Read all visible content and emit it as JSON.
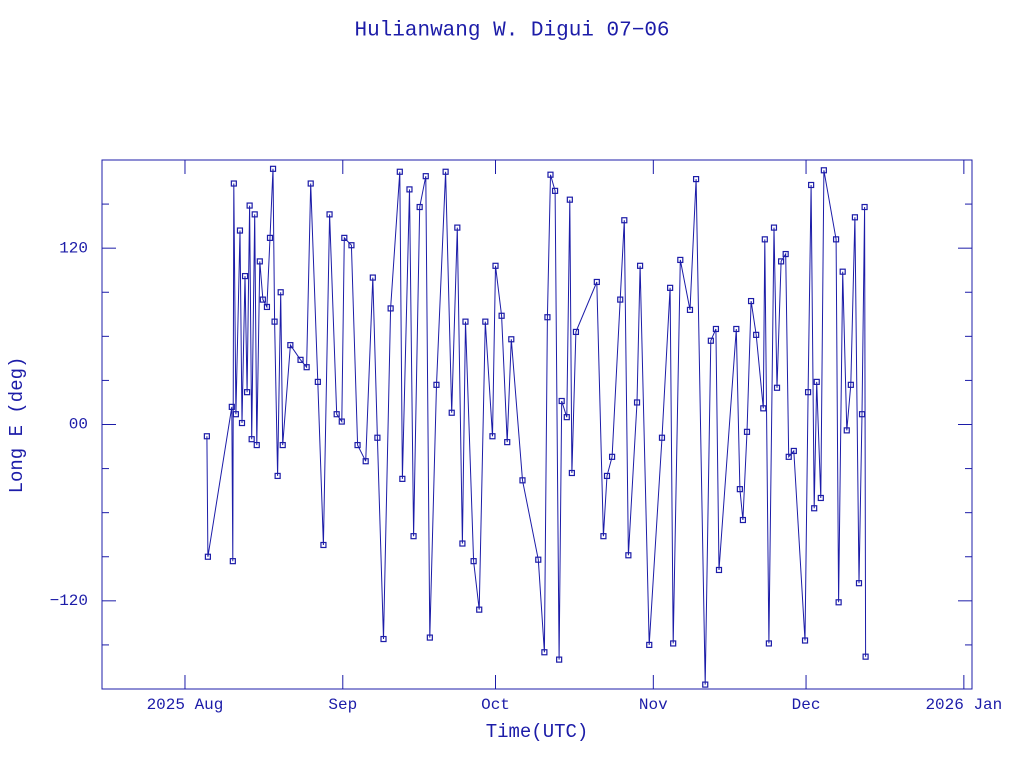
{
  "chart_data": {
    "type": "line",
    "title": "Hulianwang W. Digui 07−06",
    "x_label": "Time(UTC)",
    "y_label": "Long E (deg)",
    "xlim": [
      196.7,
      367.6
    ],
    "xticks": [
      {
        "value": 213,
        "label": "2025 Aug"
      },
      {
        "value": 244,
        "label": "Sep"
      },
      {
        "value": 274,
        "label": "Oct"
      },
      {
        "value": 305,
        "label": "Nov"
      },
      {
        "value": 335,
        "label": "Dec"
      },
      {
        "value": 366,
        "label": "2026 Jan"
      }
    ],
    "ylim": [
      -180,
      180
    ],
    "yticks": [
      {
        "value": -120,
        "label": "−120"
      },
      {
        "value": 0,
        "label": "00"
      },
      120
    ],
    "yticks_minor": [
      -150,
      -90,
      -60,
      -30,
      30,
      60,
      90,
      150
    ],
    "color": "#1c1ca8",
    "x": [
      217.3,
      217.5,
      222.2,
      222.4,
      222.6,
      223,
      223.8,
      224.2,
      224.8,
      225.2,
      225.7,
      226.1,
      226.7,
      227.1,
      227.7,
      228.3,
      229.1,
      229.7,
      230.3,
      230.6,
      231.2,
      231.8,
      232.2,
      233.7,
      235.7,
      236.9,
      237.7,
      239.1,
      240.2,
      241.4,
      242.8,
      243.8,
      244.3,
      245.7,
      246.9,
      248.5,
      249.9,
      250.8,
      252,
      253.4,
      255.2,
      255.7,
      257.1,
      257.9,
      259.1,
      260.3,
      261.1,
      262.4,
      264.2,
      265.4,
      266.5,
      267.5,
      268.1,
      269.7,
      270.8,
      272,
      273.4,
      274,
      275.2,
      276.3,
      277.1,
      279.3,
      282.4,
      283.6,
      284.2,
      284.8,
      285.7,
      286.5,
      287,
      288,
      288.6,
      289,
      289.8,
      293.9,
      295.2,
      295.9,
      296.9,
      298.5,
      299.3,
      300.1,
      301.8,
      302.4,
      304.2,
      306.7,
      308.3,
      308.9,
      310.3,
      312.2,
      313.4,
      315.2,
      316.3,
      317.3,
      317.9,
      321.3,
      322,
      322.6,
      323.4,
      324.2,
      325.2,
      326.6,
      326.9,
      327.7,
      328.7,
      329.3,
      330.1,
      331,
      331.6,
      332.6,
      334.8,
      335.4,
      336,
      336.6,
      337.1,
      337.9,
      338.5,
      340.9,
      341.4,
      342.2,
      343,
      343.8,
      344.6,
      345.4,
      346,
      346.5,
      346.7
    ],
    "values": [
      -8,
      -90,
      12,
      -93,
      164,
      7,
      132,
      1,
      101,
      22,
      149,
      -10,
      143,
      -14,
      111,
      85,
      80,
      127,
      174,
      70,
      -35,
      90,
      -14,
      54,
      44,
      39,
      164,
      29,
      -82,
      143,
      7,
      2,
      127,
      122,
      -14,
      -25,
      100,
      -9,
      -146,
      79,
      172,
      -37,
      160,
      -76,
      148,
      169,
      -145,
      27,
      172,
      8,
      134,
      -81,
      70,
      -93,
      -126,
      70,
      -8,
      108,
      74,
      -12,
      58,
      -38,
      -92,
      -155,
      73,
      170,
      159,
      -160,
      16,
      5,
      153,
      -33,
      63,
      97,
      -76,
      -35,
      -22,
      85,
      139,
      -89,
      15,
      108,
      -150,
      -9,
      93,
      -149,
      112,
      78,
      167,
      -177,
      57,
      65,
      -99,
      65,
      -44,
      -65,
      -5,
      84,
      61,
      11,
      126,
      -149,
      134,
      25,
      111,
      116,
      -22,
      -18,
      -147,
      22,
      163,
      -57,
      29,
      -50,
      173,
      126,
      -121,
      104,
      -4,
      27,
      141,
      -108,
      7,
      148,
      -158
    ]
  }
}
